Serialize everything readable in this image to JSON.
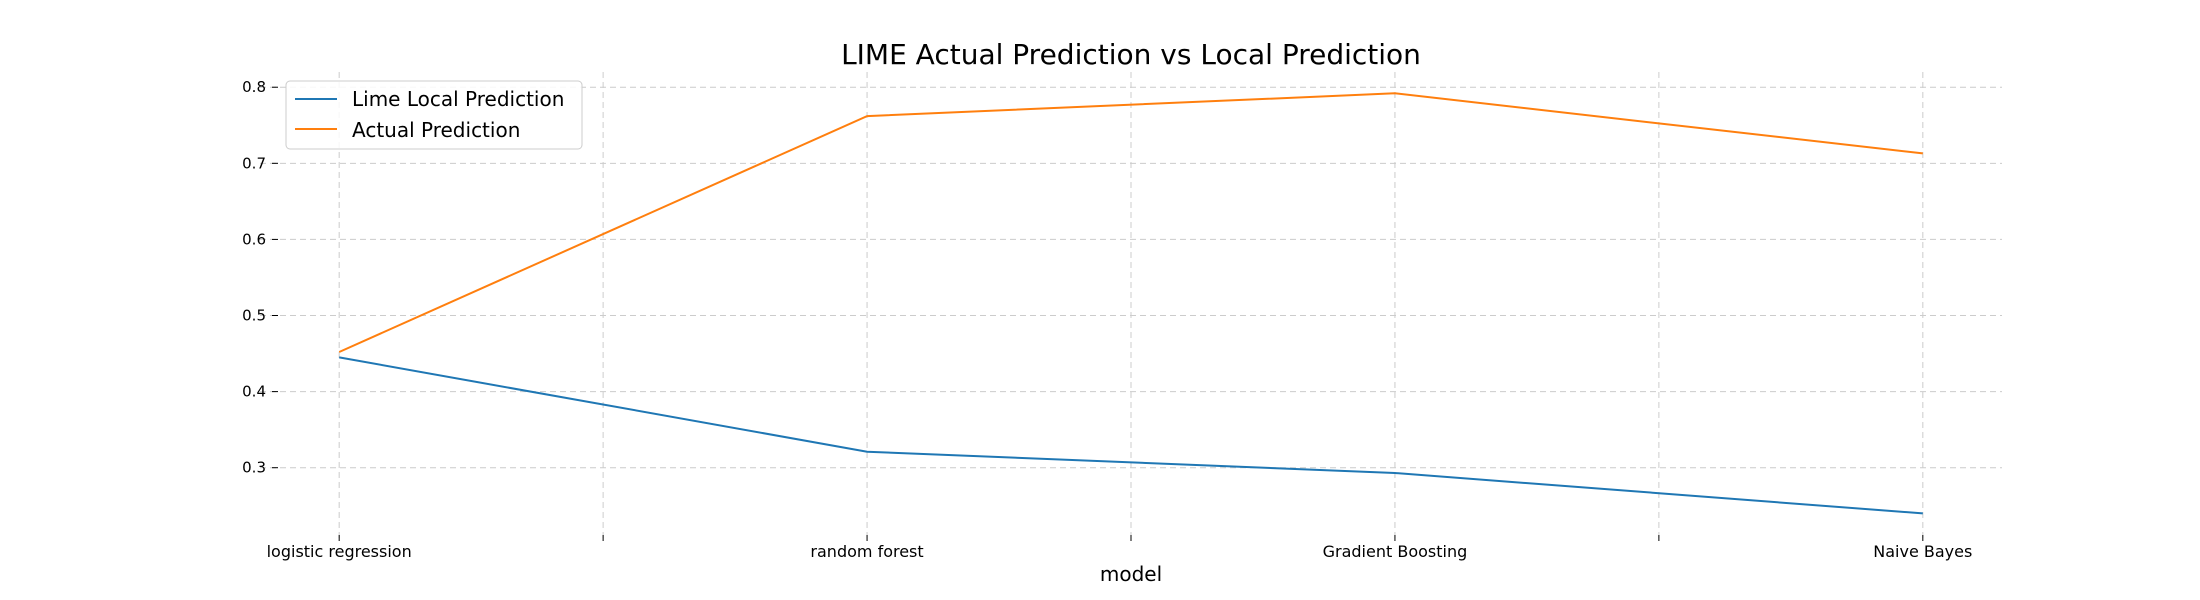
{
  "chart_data": {
    "type": "line",
    "title": "LIME Actual Prediction vs Local Prediction",
    "xlabel": "model",
    "ylabel": "",
    "categories": [
      "logistic regression",
      "random forest",
      "Gradient Boosting",
      "Naive Bayes"
    ],
    "x": [
      0,
      1,
      2,
      3
    ],
    "xlim": [
      -0.15,
      3.15
    ],
    "xticks_minor": [
      0.5,
      1.5,
      2.5
    ],
    "ylim": [
      0.205,
      0.82
    ],
    "yticks": [
      0.3,
      0.4,
      0.5,
      0.6,
      0.7,
      0.8
    ],
    "ytick_labels": [
      "0.3",
      "0.4",
      "0.5",
      "0.6",
      "0.7",
      "0.8"
    ],
    "grid": true,
    "legend_position": "top-left",
    "series": [
      {
        "name": "Lime Local Prediction",
        "color": "#1f77b4",
        "values": [
          0.445,
          0.321,
          0.293,
          0.24
        ]
      },
      {
        "name": "Actual Prediction",
        "color": "#ff7f0e",
        "values": [
          0.452,
          0.762,
          0.792,
          0.713
        ]
      }
    ]
  }
}
